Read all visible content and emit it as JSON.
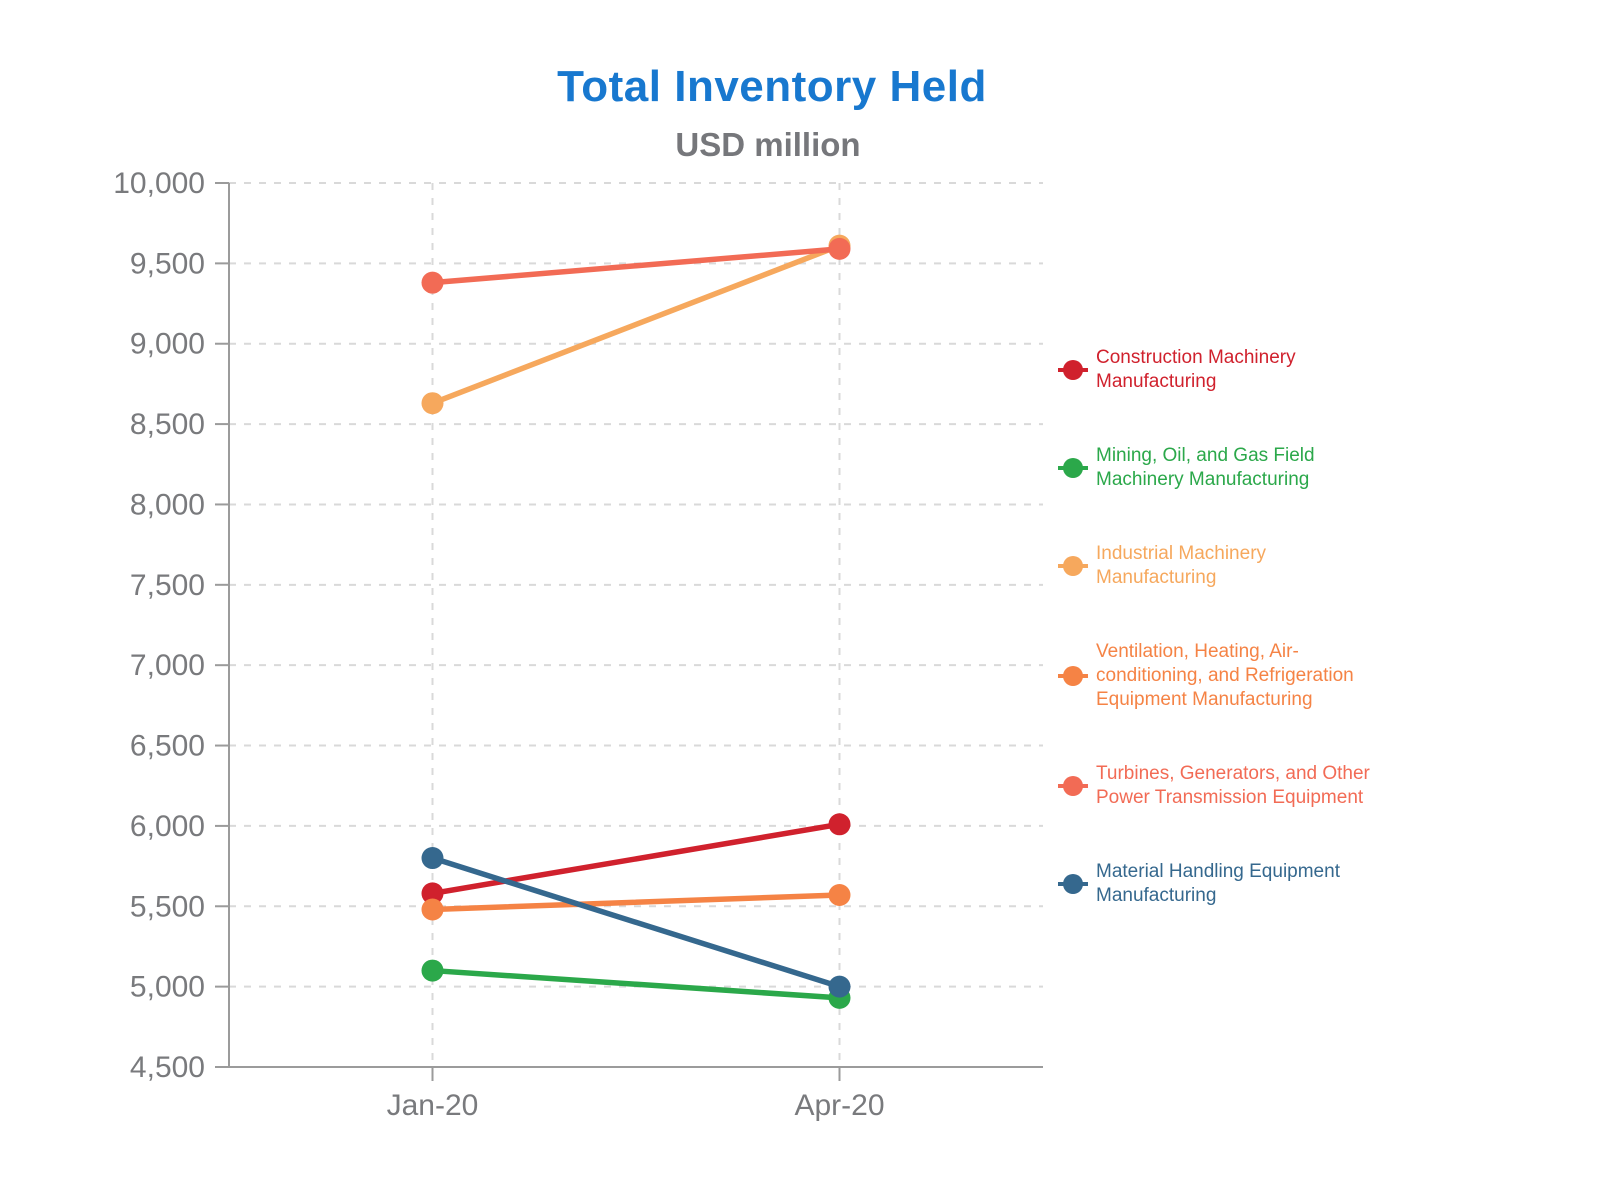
{
  "chart_data": {
    "type": "line",
    "title": "Total Inventory Held",
    "subtitle": "USD million",
    "categories": [
      "Jan-20",
      "Apr-20"
    ],
    "series": [
      {
        "name": "Construction Machinery Manufacturing",
        "color": "#D0212D",
        "values": [
          5580,
          6010
        ]
      },
      {
        "name": "Mining, Oil, and Gas Field Machinery Manufacturing",
        "color": "#2BA84A",
        "values": [
          5100,
          4930
        ]
      },
      {
        "name": "Industrial Machinery Manufacturing",
        "color": "#F6A85D",
        "values": [
          8630,
          9610
        ]
      },
      {
        "name": "Ventilation, Heating, Air-conditioning, and Refrigeration Equipment Manufacturing",
        "color": "#F58345",
        "values": [
          5480,
          5570
        ]
      },
      {
        "name": "Turbines, Generators, and Other Power Transmission Equipment",
        "color": "#F26B55",
        "values": [
          9380,
          9590
        ]
      },
      {
        "name": "Material Handling Equipment Manufacturing",
        "color": "#35688E",
        "values": [
          5800,
          5000
        ]
      }
    ],
    "ylim": [
      4500,
      10000
    ],
    "ytick_step": 500,
    "ytick_labels": [
      "4,500",
      "5,000",
      "5,500",
      "6,000",
      "6,500",
      "7,000",
      "7,500",
      "8,000",
      "8,500",
      "9,000",
      "9,500",
      "10,000"
    ],
    "grid": "dashed horizontal at every y tick, dashed vertical at each category",
    "legend_position": "right"
  },
  "style": {
    "title_color": "#1878CF",
    "subtitle_color": "#76777B",
    "axis_text_color": "#797A7D",
    "axis_line_color": "#9B9B9B",
    "grid_color": "#D9D9D9",
    "background": "#FFFFFF"
  }
}
